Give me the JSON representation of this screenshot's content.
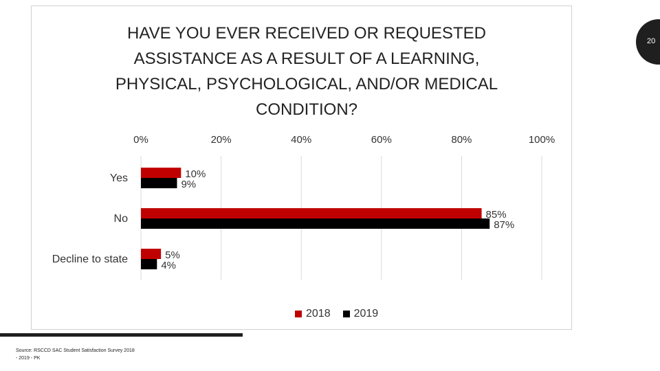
{
  "slide": {
    "page_number": "20",
    "source_line1": "Source: RSCCD SAC Student Satisfaction Survey 2018",
    "source_line2": "- 2019 - PK"
  },
  "chart_data": {
    "type": "bar",
    "orientation": "horizontal",
    "title": "HAVE YOU EVER RECEIVED OR REQUESTED ASSISTANCE AS A RESULT OF A LEARNING, PHYSICAL, PSYCHOLOGICAL, AND/OR MEDICAL CONDITION?",
    "categories": [
      "Yes",
      "No",
      "Decline to state"
    ],
    "series": [
      {
        "name": "2018",
        "values": [
          10,
          85,
          5
        ],
        "labels": [
          "10%",
          "85%",
          "5%"
        ],
        "color": "#c00000"
      },
      {
        "name": "2019",
        "values": [
          9,
          87,
          4
        ],
        "labels": [
          "9%",
          "87%",
          "4%"
        ],
        "color": "#000000"
      }
    ],
    "xlim": [
      0,
      100
    ],
    "ticks": [
      0,
      20,
      40,
      60,
      80,
      100
    ],
    "tick_labels": [
      "0%",
      "20%",
      "40%",
      "60%",
      "80%",
      "100%"
    ],
    "xlabel": "",
    "ylabel": "",
    "grid": true,
    "legend_position": "bottom"
  }
}
